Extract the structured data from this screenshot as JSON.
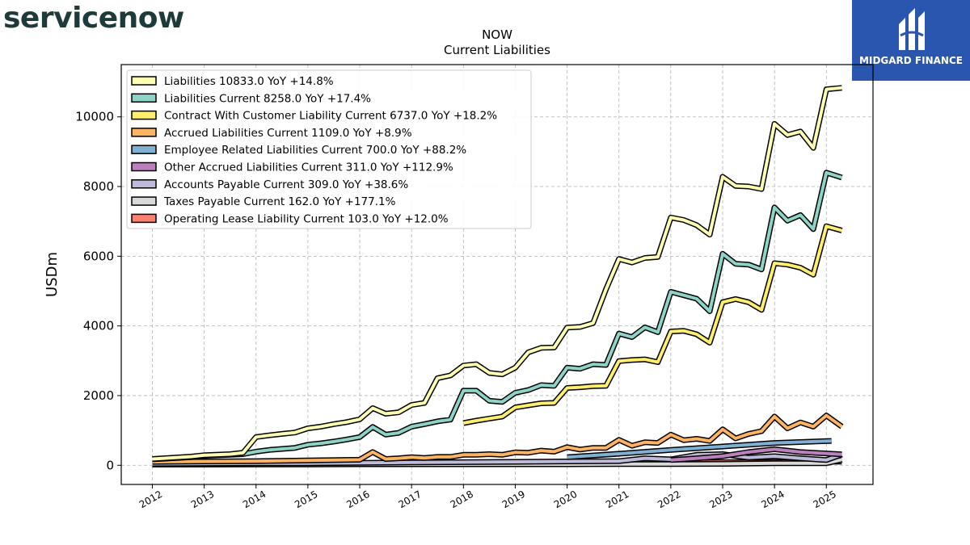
{
  "logos": {
    "left_brand": "servicenow",
    "right_brand": "MIDGARD FINANCE"
  },
  "chart_data": {
    "type": "line",
    "title": "NOW",
    "subtitle": "Current  Liabilities",
    "ylabel": "USDm",
    "xlabel": "",
    "ylim": [
      -550,
      11500
    ],
    "xlim": [
      2011.4,
      2025.9
    ],
    "yticks": [
      0,
      2000,
      4000,
      6000,
      8000,
      10000
    ],
    "xticks": [
      2012,
      2013,
      2014,
      2015,
      2016,
      2017,
      2018,
      2019,
      2020,
      2021,
      2022,
      2023,
      2024,
      2025
    ],
    "grid": true,
    "legend_position": "top-left",
    "series": [
      {
        "name": "Liabilities",
        "legend": "Liabilities  10833.0 YoY +14.8%",
        "color": "#ffffb3",
        "x": [
          2012.0,
          2012.75,
          2013.0,
          2013.5,
          2013.75,
          2014.0,
          2014.25,
          2014.5,
          2014.75,
          2015.0,
          2015.25,
          2015.5,
          2015.75,
          2016.0,
          2016.25,
          2016.5,
          2016.75,
          2017.0,
          2017.25,
          2017.5,
          2017.75,
          2018.0,
          2018.25,
          2018.5,
          2018.75,
          2019.0,
          2019.25,
          2019.5,
          2019.75,
          2020.0,
          2020.25,
          2020.5,
          2020.75,
          2021.0,
          2021.25,
          2021.5,
          2021.75,
          2022.0,
          2022.25,
          2022.5,
          2022.75,
          2023.0,
          2023.25,
          2023.5,
          2023.75,
          2024.0,
          2024.25,
          2024.5,
          2024.75,
          2025.0,
          2025.3
        ],
        "y": [
          180,
          250,
          290,
          320,
          360,
          810,
          860,
          900,
          940,
          1060,
          1110,
          1180,
          1240,
          1320,
          1640,
          1480,
          1520,
          1730,
          1790,
          2500,
          2580,
          2860,
          2900,
          2650,
          2610,
          2800,
          3240,
          3370,
          3380,
          3950,
          3970,
          4080,
          5050,
          5920,
          5820,
          5950,
          5980,
          7110,
          7040,
          6890,
          6620,
          8280,
          8020,
          8000,
          7930,
          9800,
          9480,
          9580,
          9110,
          10790,
          10833
        ]
      },
      {
        "name": "Liabilities Current",
        "legend": "Liabilities Current  8258.0 YoY +17.4%",
        "color": "#8dd3c7",
        "x": [
          2012.0,
          2012.75,
          2013.0,
          2013.5,
          2013.75,
          2014.0,
          2014.25,
          2014.5,
          2014.75,
          2015.0,
          2015.25,
          2015.5,
          2015.75,
          2016.0,
          2016.25,
          2016.5,
          2016.75,
          2017.0,
          2017.25,
          2017.5,
          2017.75,
          2018.0,
          2018.25,
          2018.5,
          2018.75,
          2019.0,
          2019.25,
          2019.5,
          2019.75,
          2020.0,
          2020.25,
          2020.5,
          2020.75,
          2021.0,
          2021.25,
          2021.5,
          2021.75,
          2022.0,
          2022.25,
          2022.5,
          2022.75,
          2023.0,
          2023.25,
          2023.5,
          2023.75,
          2024.0,
          2024.25,
          2024.5,
          2024.75,
          2025.0,
          2025.3
        ],
        "y": [
          170,
          230,
          270,
          300,
          320,
          390,
          440,
          470,
          500,
          590,
          630,
          680,
          740,
          810,
          1100,
          880,
          930,
          1110,
          1180,
          1260,
          1310,
          2140,
          2140,
          1850,
          1820,
          2080,
          2160,
          2300,
          2280,
          2800,
          2770,
          2900,
          2880,
          3780,
          3680,
          3960,
          3820,
          4980,
          4880,
          4780,
          4420,
          6070,
          5780,
          5760,
          5620,
          7400,
          7020,
          7180,
          6780,
          8400,
          8258
        ]
      },
      {
        "name": "Contract With Customer Liability Current",
        "legend": "Contract With Customer Liability Current  6737.0 YoY +18.2%",
        "color": "#fdee6b",
        "x": [
          2018.0,
          2018.25,
          2018.5,
          2018.75,
          2019.0,
          2019.25,
          2019.5,
          2019.75,
          2020.0,
          2020.25,
          2020.5,
          2020.75,
          2021.0,
          2021.25,
          2021.5,
          2021.75,
          2022.0,
          2022.25,
          2022.5,
          2022.75,
          2023.0,
          2023.25,
          2023.5,
          2023.75,
          2024.0,
          2024.25,
          2024.5,
          2024.75,
          2025.0,
          2025.3
        ],
        "y": [
          1210,
          1280,
          1340,
          1400,
          1660,
          1720,
          1780,
          1790,
          2220,
          2240,
          2270,
          2280,
          2990,
          3020,
          3040,
          2960,
          3840,
          3860,
          3760,
          3520,
          4680,
          4770,
          4680,
          4460,
          5800,
          5760,
          5670,
          5470,
          6860,
          6737
        ]
      },
      {
        "name": "Accrued Liabilities Current",
        "legend": "Accrued Liabilities Current  1109.0 YoY +8.9%",
        "color": "#fdb462",
        "x": [
          2012.0,
          2013.0,
          2014.0,
          2015.0,
          2016.0,
          2016.25,
          2016.5,
          2016.75,
          2017.0,
          2017.25,
          2017.5,
          2017.75,
          2018.0,
          2018.25,
          2018.5,
          2018.75,
          2019.0,
          2019.25,
          2019.5,
          2019.75,
          2020.0,
          2020.25,
          2020.5,
          2020.75,
          2021.0,
          2021.25,
          2021.5,
          2021.75,
          2022.0,
          2022.25,
          2022.5,
          2022.75,
          2023.0,
          2023.25,
          2023.5,
          2023.75,
          2024.0,
          2024.25,
          2024.5,
          2024.75,
          2025.0,
          2025.3
        ],
        "y": [
          100,
          110,
          120,
          140,
          160,
          380,
          180,
          200,
          230,
          210,
          240,
          240,
          300,
          300,
          320,
          300,
          370,
          360,
          420,
          390,
          520,
          450,
          500,
          500,
          730,
          560,
          660,
          640,
          880,
          720,
          760,
          700,
          1030,
          770,
          900,
          980,
          1400,
          1060,
          1230,
          1110,
          1430,
          1109
        ]
      },
      {
        "name": "Employee Related Liabilities Current",
        "legend": "Employee Related Liabilities Current  700.0 YoY +88.2%",
        "color": "#80b1d3",
        "x": [
          2020.0,
          2021.0,
          2022.0,
          2023.0,
          2024.0,
          2025.1
        ],
        "y": [
          230,
          330,
          440,
          540,
          640,
          700
        ]
      },
      {
        "name": "Other Accrued Liabilities Current",
        "legend": "Other Accrued Liabilities Current  311.0 YoY +112.9%",
        "color": "#bc80bd",
        "x": [
          2022.0,
          2022.5,
          2023.0,
          2023.5,
          2024.0,
          2024.5,
          2025.0,
          2025.3
        ],
        "y": [
          150,
          200,
          260,
          380,
          460,
          380,
          340,
          311
        ]
      },
      {
        "name": "Accounts Payable Current",
        "legend": "Accounts Payable Current  309.0 YoY +38.6%",
        "color": "#bebada",
        "x": [
          2012.0,
          2013.0,
          2014.0,
          2015.0,
          2016.0,
          2017.0,
          2018.0,
          2019.0,
          2020.0,
          2021.0,
          2021.5,
          2022.0,
          2022.5,
          2023.0,
          2023.5,
          2024.0,
          2024.5,
          2025.0,
          2025.3
        ],
        "y": [
          40,
          50,
          55,
          60,
          70,
          80,
          90,
          100,
          110,
          120,
          200,
          170,
          300,
          320,
          220,
          260,
          200,
          150,
          309
        ]
      },
      {
        "name": "Taxes Payable Current",
        "legend": "Taxes Payable Current  162.0 YoY +177.1%",
        "color": "#d9d9d9",
        "x": [
          2012.0,
          2013.0,
          2014.0,
          2015.0,
          2016.0,
          2017.0,
          2018.0,
          2019.0,
          2020.0,
          2021.0,
          2022.0,
          2023.0,
          2024.0,
          2025.0,
          2025.3
        ],
        "y": [
          20,
          20,
          25,
          25,
          30,
          30,
          30,
          30,
          30,
          35,
          35,
          40,
          60,
          60,
          162
        ]
      },
      {
        "name": "Operating Lease Liability Current",
        "legend": "Operating Lease Liability Current  103.0 YoY +12.0%",
        "color": "#fb8072",
        "x": [
          2020.0,
          2021.0,
          2022.0,
          2023.0,
          2024.0,
          2025.3
        ],
        "y": [
          60,
          75,
          80,
          90,
          95,
          103
        ]
      }
    ]
  }
}
